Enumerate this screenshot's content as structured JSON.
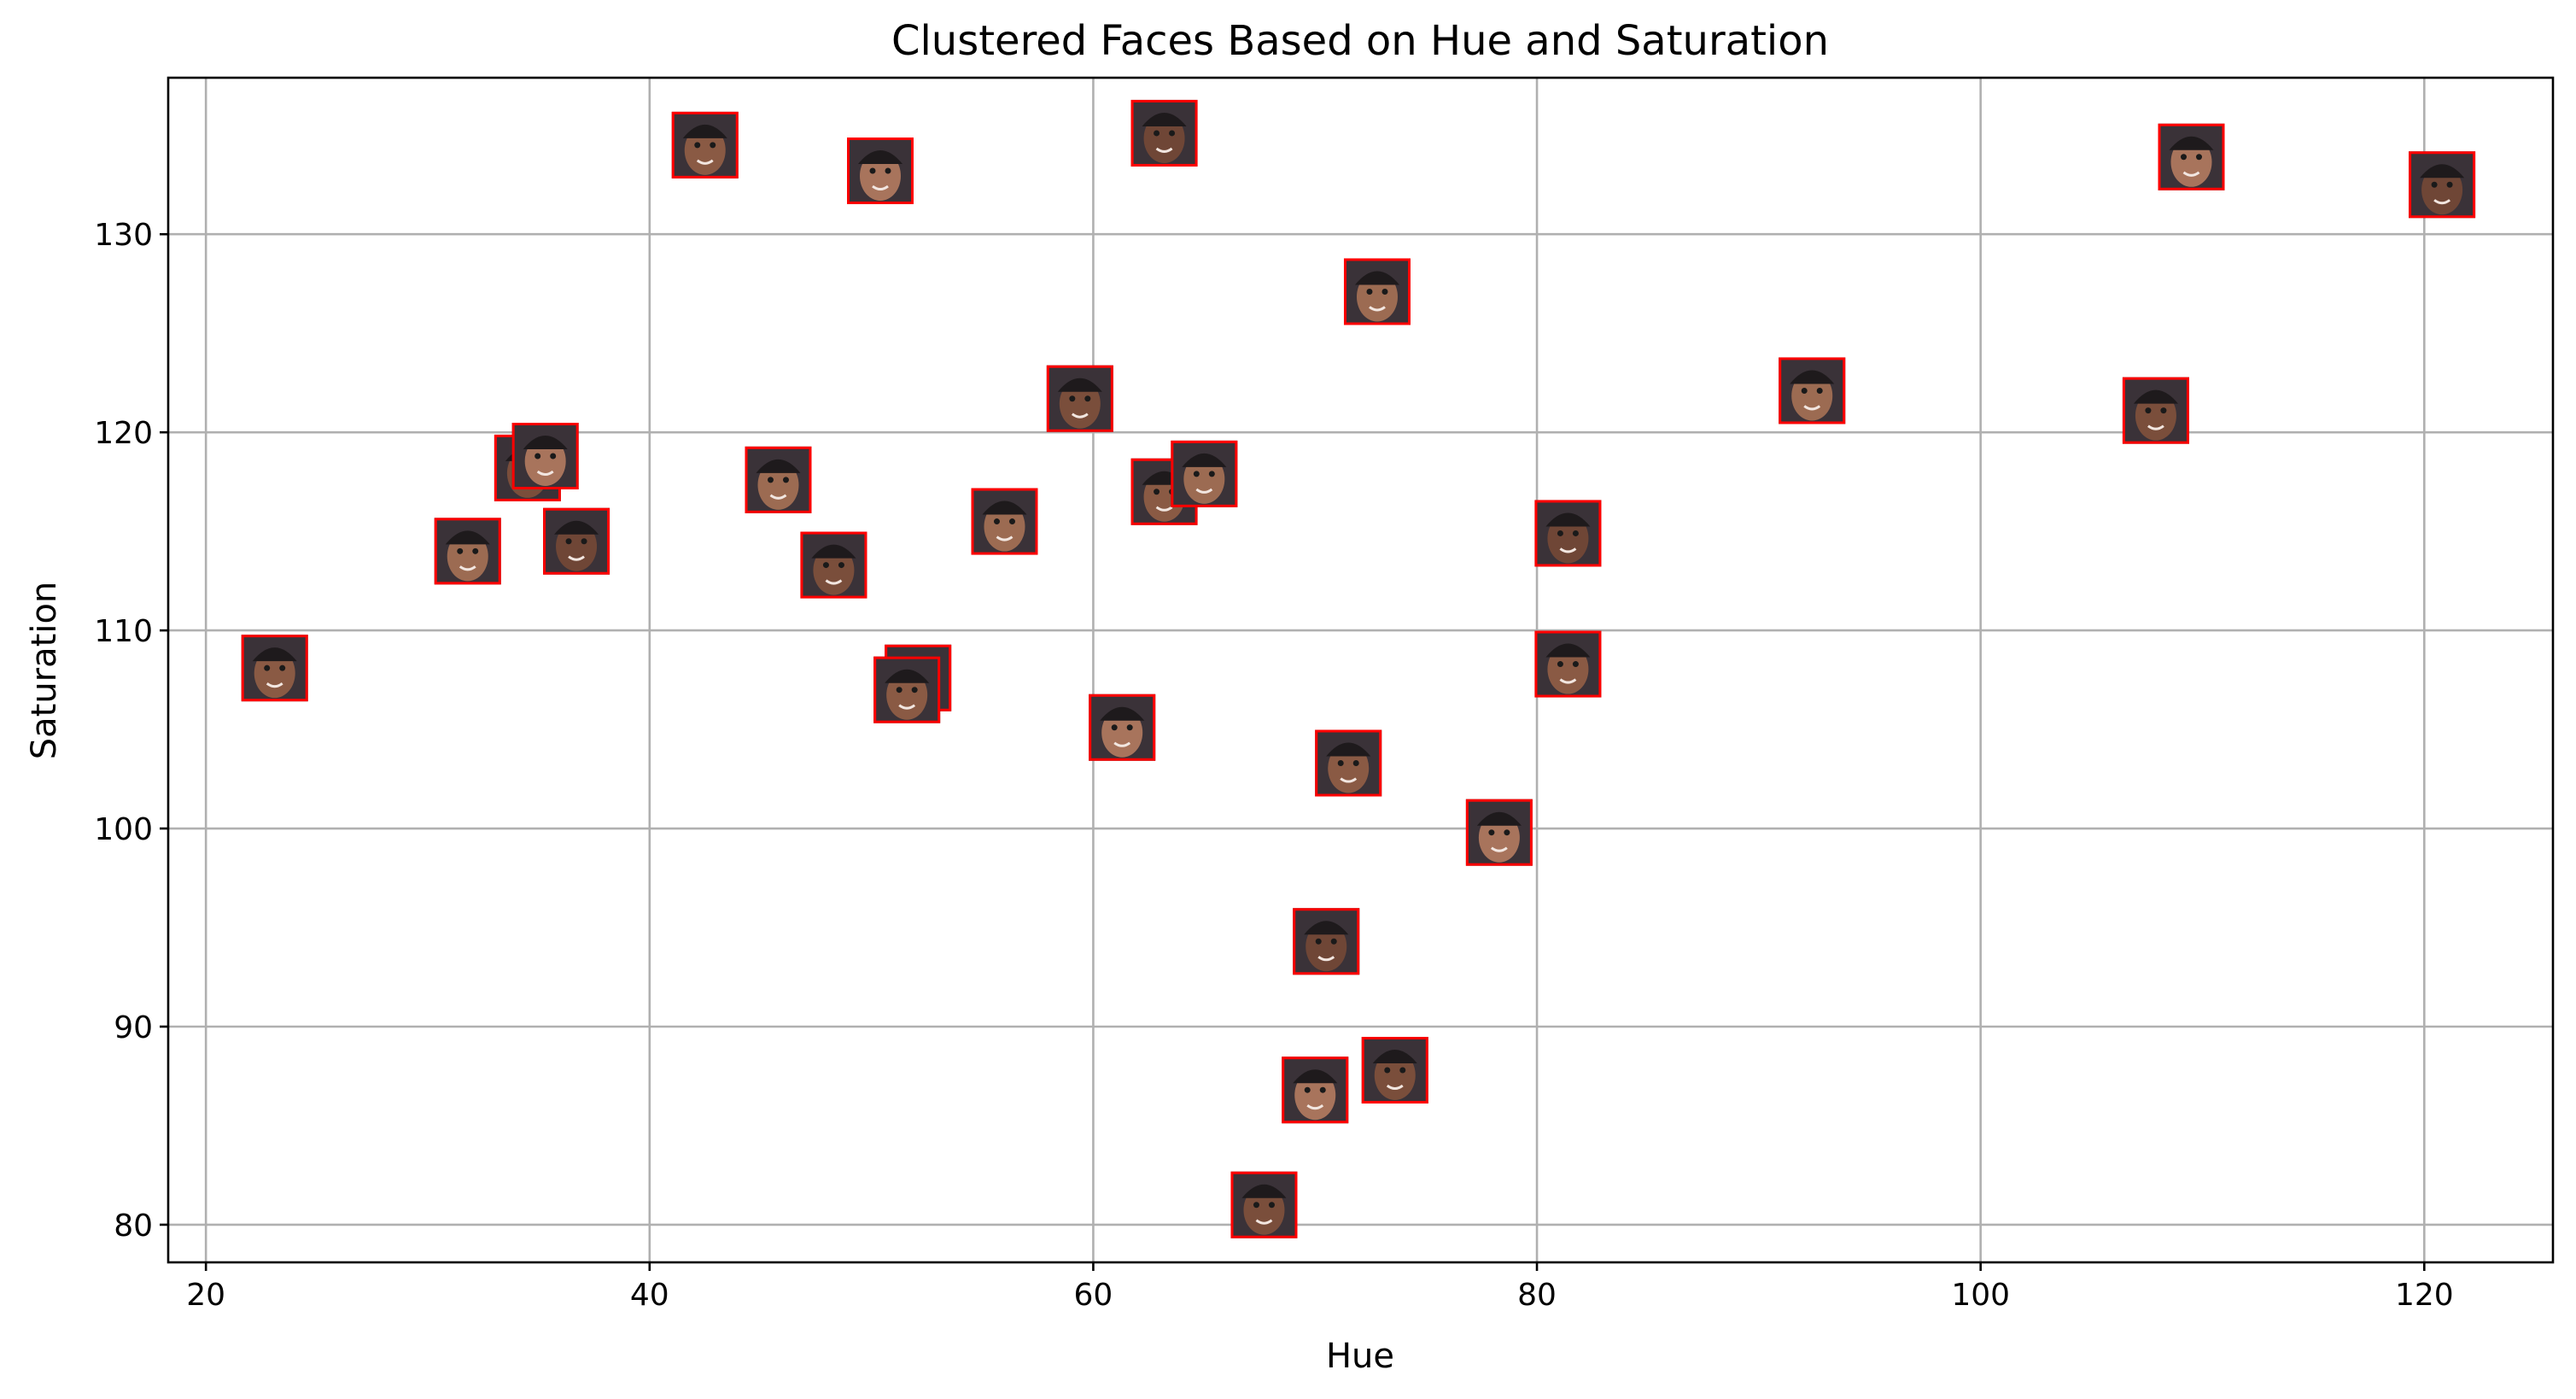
{
  "chart_data": {
    "type": "scatter",
    "title": "Clustered Faces Based on Hue and Saturation",
    "xlabel": "Hue",
    "ylabel": "Saturation",
    "xlim": [
      18.3,
      125.8
    ],
    "ylim": [
      78.1,
      137.9
    ],
    "xticks": [
      20,
      40,
      60,
      80,
      100,
      120
    ],
    "yticks": [
      80,
      90,
      100,
      110,
      120,
      130
    ],
    "grid": true,
    "marker": "face-thumbnail",
    "marker_border_color": "#ff0000",
    "points": [
      {
        "x": 23.1,
        "y": 108.1
      },
      {
        "x": 31.8,
        "y": 114.0
      },
      {
        "x": 34.5,
        "y": 118.2
      },
      {
        "x": 35.3,
        "y": 118.8
      },
      {
        "x": 36.7,
        "y": 114.5
      },
      {
        "x": 42.5,
        "y": 134.5
      },
      {
        "x": 45.8,
        "y": 117.6
      },
      {
        "x": 48.3,
        "y": 113.3
      },
      {
        "x": 50.4,
        "y": 133.2
      },
      {
        "x": 52.1,
        "y": 107.6
      },
      {
        "x": 51.6,
        "y": 107.0
      },
      {
        "x": 56.0,
        "y": 115.5
      },
      {
        "x": 59.4,
        "y": 121.7
      },
      {
        "x": 61.3,
        "y": 105.1
      },
      {
        "x": 63.2,
        "y": 135.1
      },
      {
        "x": 63.2,
        "y": 117.0
      },
      {
        "x": 65.0,
        "y": 117.9
      },
      {
        "x": 67.7,
        "y": 81.0
      },
      {
        "x": 70.0,
        "y": 86.8
      },
      {
        "x": 70.5,
        "y": 94.3
      },
      {
        "x": 71.5,
        "y": 103.3
      },
      {
        "x": 72.8,
        "y": 127.1
      },
      {
        "x": 73.6,
        "y": 87.8
      },
      {
        "x": 78.3,
        "y": 99.8
      },
      {
        "x": 81.4,
        "y": 114.9
      },
      {
        "x": 81.4,
        "y": 108.3
      },
      {
        "x": 92.4,
        "y": 122.1
      },
      {
        "x": 107.9,
        "y": 121.1
      },
      {
        "x": 109.5,
        "y": 133.9
      },
      {
        "x": 120.8,
        "y": 132.5
      }
    ]
  }
}
